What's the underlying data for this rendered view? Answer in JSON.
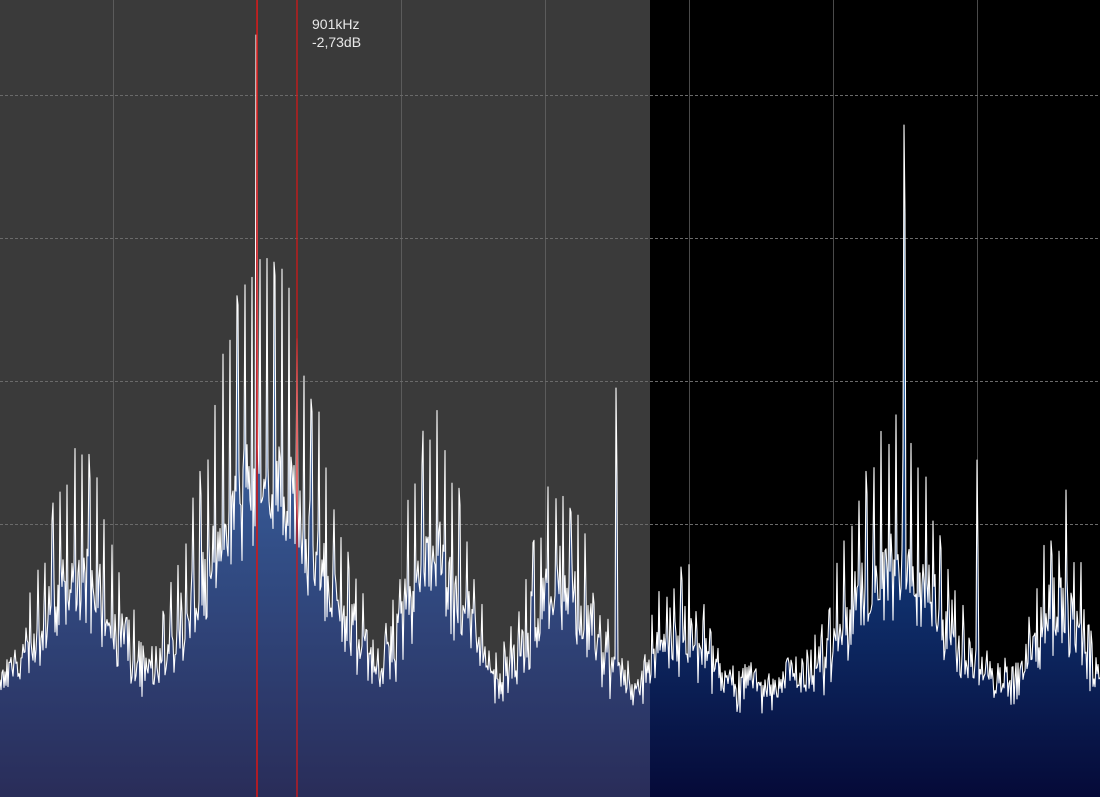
{
  "colors": {
    "background": "#000000",
    "selection_band": "#3a3a3a",
    "grid_line": "#6a6a6a",
    "trace": "#ffffff",
    "fill_top": "#2b6cb3",
    "fill_bottom": "#050a38",
    "marker_line": "#d01818"
  },
  "cursor_readout": {
    "frequency": "901kHz",
    "level": "-2,73dB"
  },
  "selection_band": {
    "visible": true
  },
  "grid": {
    "dashed_horizontal_lines": true,
    "vertical_lines": true
  },
  "markers": [
    {
      "name": "marker-line-1",
      "highlighted": true
    },
    {
      "name": "marker-line-2",
      "highlighted": false
    }
  ]
}
